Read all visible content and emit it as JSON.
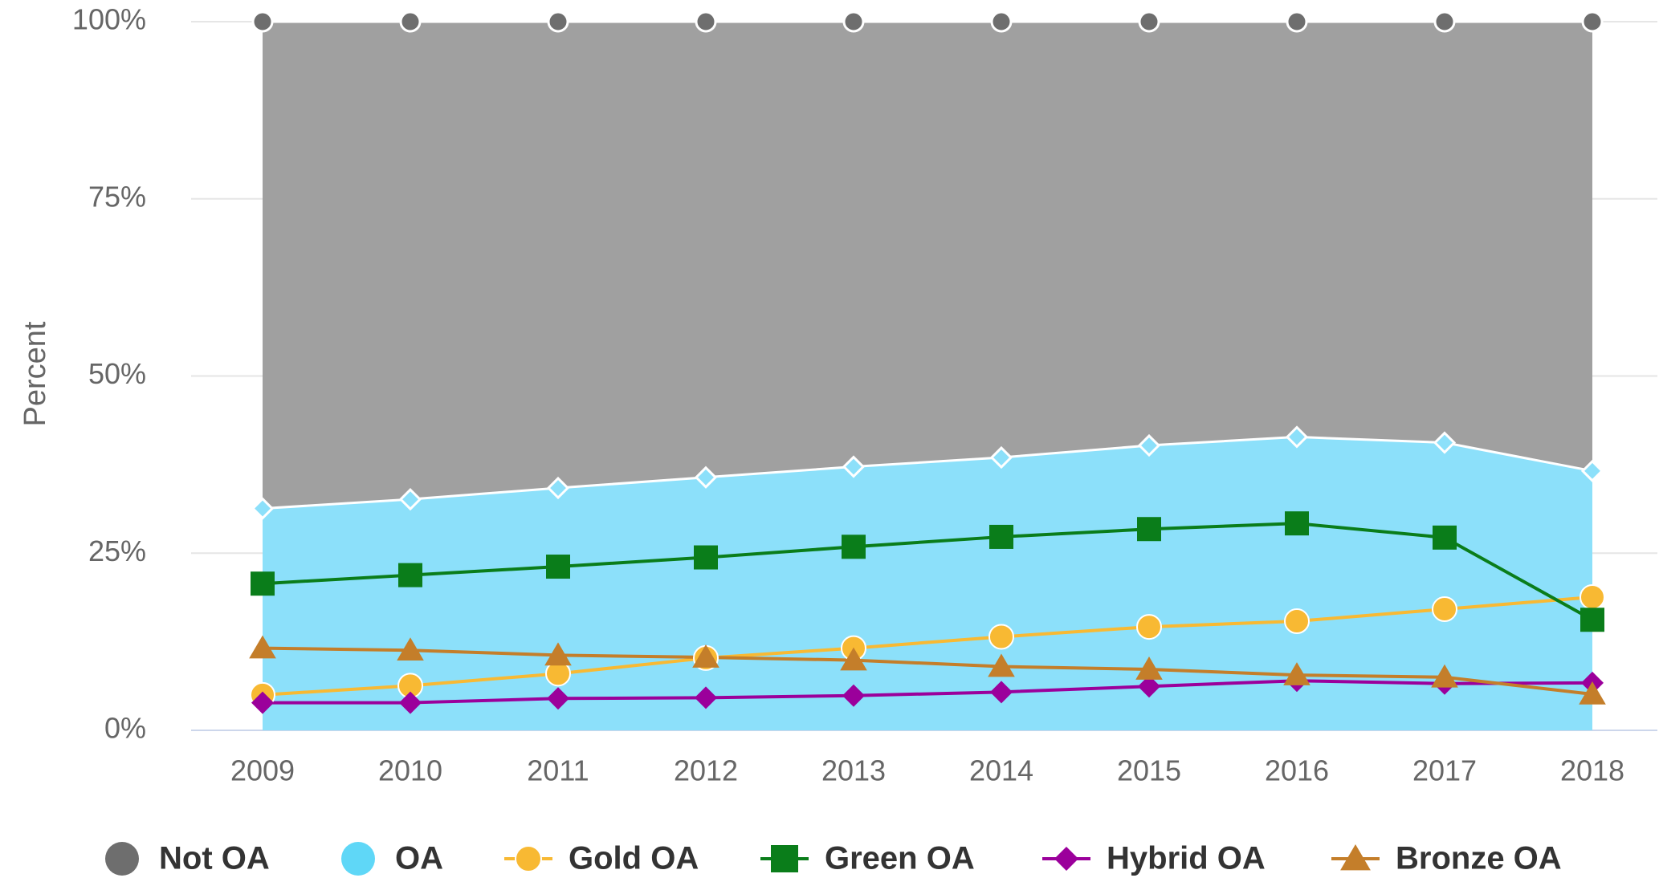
{
  "chart_data": {
    "type": "area",
    "x": [
      "2009",
      "2010",
      "2011",
      "2012",
      "2013",
      "2014",
      "2015",
      "2016",
      "2017",
      "2018"
    ],
    "ylabel": "Percent",
    "xlabel": "",
    "ylim": [
      0,
      100
    ],
    "yticks": [
      "0%",
      "25%",
      "50%",
      "75%",
      "100%"
    ],
    "grid": true,
    "legend_position": "bottom",
    "series": [
      {
        "name": "Not OA",
        "kind": "area",
        "color": "#a0a0a0",
        "marker": "circle",
        "marker_color": "#6e6e6e",
        "values": [
          100,
          100,
          100,
          100,
          100,
          100,
          100,
          100,
          100,
          100
        ]
      },
      {
        "name": "OA",
        "kind": "area",
        "color": "#8ce0fa",
        "marker": "diamond",
        "marker_color": "#8ce0fa",
        "values": [
          31.3,
          32.6,
          34.2,
          35.7,
          37.2,
          38.5,
          40.2,
          41.4,
          40.6,
          36.6
        ]
      },
      {
        "name": "Gold OA",
        "kind": "line",
        "color": "#f8b933",
        "marker": "circle",
        "values": [
          5.0,
          6.3,
          8.0,
          10.2,
          11.6,
          13.2,
          14.6,
          15.4,
          17.1,
          18.8
        ]
      },
      {
        "name": "Green OA",
        "kind": "line",
        "color": "#0a7d1a",
        "marker": "square",
        "values": [
          20.7,
          21.9,
          23.1,
          24.4,
          25.9,
          27.3,
          28.4,
          29.2,
          27.2,
          15.6
        ]
      },
      {
        "name": "Hybrid OA",
        "kind": "line",
        "color": "#9b009b",
        "marker": "diamond",
        "values": [
          3.9,
          3.9,
          4.5,
          4.6,
          4.9,
          5.4,
          6.2,
          7.0,
          6.6,
          6.7
        ]
      },
      {
        "name": "Bronze OA",
        "kind": "line",
        "color": "#c47e2a",
        "marker": "triangle",
        "values": [
          11.6,
          11.3,
          10.6,
          10.3,
          9.9,
          9.0,
          8.6,
          7.8,
          7.5,
          5.1
        ]
      }
    ]
  }
}
